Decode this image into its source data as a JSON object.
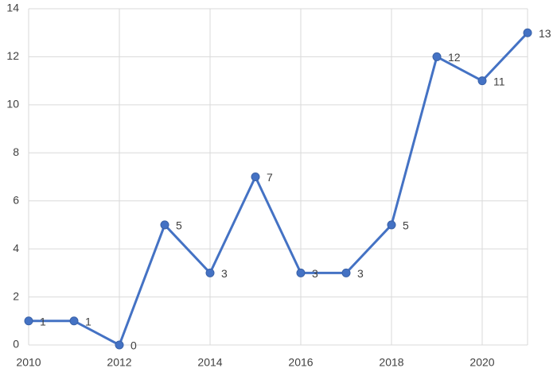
{
  "chart_data": {
    "type": "line",
    "x": [
      2010,
      2011,
      2012,
      2013,
      2014,
      2015,
      2016,
      2017,
      2018,
      2019,
      2020,
      2021
    ],
    "series": [
      {
        "color": "#4472c4",
        "values": [
          1,
          1,
          0,
          5,
          3,
          7,
          3,
          3,
          5,
          12,
          11,
          13
        ]
      }
    ],
    "xlim": [
      2010,
      2021
    ],
    "xticks": [
      2010,
      2012,
      2014,
      2016,
      2018,
      2020
    ],
    "ylim": [
      0,
      14
    ],
    "yticks": [
      0,
      2,
      4,
      6,
      8,
      10,
      12,
      14
    ],
    "grid": true
  }
}
